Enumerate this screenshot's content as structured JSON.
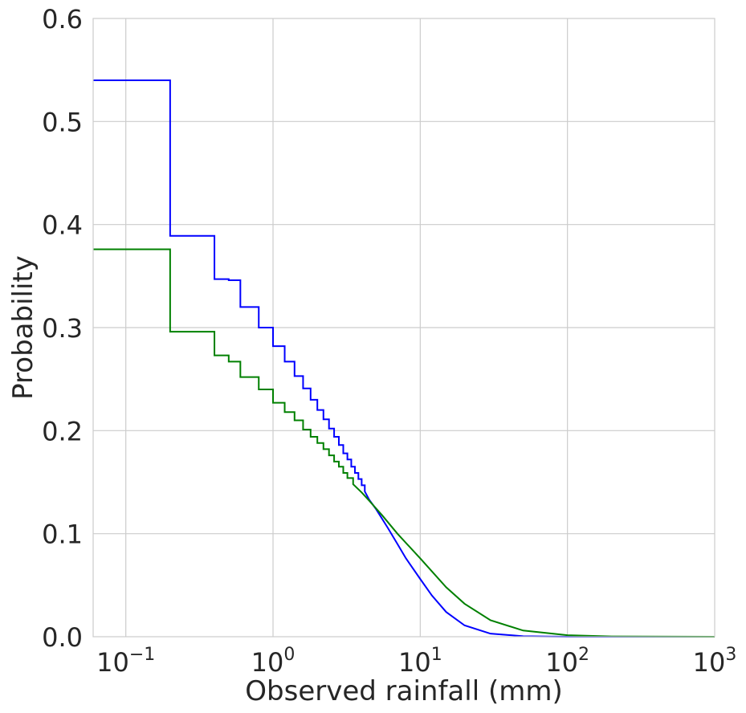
{
  "chart_data": {
    "type": "line",
    "title": "",
    "xlabel": "Observed rainfall (mm)",
    "ylabel": "Probability",
    "xscale": "log",
    "xlim": [
      0.06,
      1000
    ],
    "ylim": [
      0,
      0.6
    ],
    "grid": true,
    "x_ticks": [
      {
        "value": 0.1,
        "base": "10",
        "exp": "−1"
      },
      {
        "value": 1,
        "base": "10",
        "exp": "0"
      },
      {
        "value": 10,
        "base": "10",
        "exp": "1"
      },
      {
        "value": 100,
        "base": "10",
        "exp": "2"
      },
      {
        "value": 1000,
        "base": "10",
        "exp": "3"
      }
    ],
    "y_ticks": [
      {
        "value": 0.0,
        "label": "0.0"
      },
      {
        "value": 0.1,
        "label": "0.1"
      },
      {
        "value": 0.2,
        "label": "0.2"
      },
      {
        "value": 0.3,
        "label": "0.3"
      },
      {
        "value": 0.4,
        "label": "0.4"
      },
      {
        "value": 0.5,
        "label": "0.5"
      },
      {
        "value": 0.6,
        "label": "0.6"
      }
    ],
    "series": [
      {
        "name": "series-blue",
        "color": "#0000ff",
        "x": [
          0.06,
          0.2,
          0.2,
          0.4,
          0.4,
          0.5,
          0.5,
          0.6,
          0.6,
          0.8,
          0.8,
          1.0,
          1.0,
          1.2,
          1.2,
          1.4,
          1.4,
          1.6,
          1.6,
          1.8,
          1.8,
          2.0,
          2.0,
          2.2,
          2.2,
          2.4,
          2.4,
          2.6,
          2.6,
          2.8,
          2.8,
          3.0,
          3.0,
          3.2,
          3.2,
          3.4,
          3.4,
          3.6,
          3.6,
          3.8,
          3.8,
          4.0,
          4.0,
          4.2,
          4.2,
          4.5,
          5.0,
          6.0,
          7.0,
          8.0,
          10.0,
          12.0,
          15.0,
          20.0,
          30.0,
          50.0,
          100.0,
          1000.0
        ],
        "y": [
          0.54,
          0.54,
          0.389,
          0.389,
          0.347,
          0.347,
          0.346,
          0.346,
          0.32,
          0.32,
          0.3,
          0.3,
          0.282,
          0.282,
          0.267,
          0.267,
          0.253,
          0.253,
          0.241,
          0.241,
          0.23,
          0.23,
          0.22,
          0.22,
          0.211,
          0.211,
          0.202,
          0.202,
          0.194,
          0.194,
          0.186,
          0.186,
          0.178,
          0.178,
          0.172,
          0.172,
          0.165,
          0.165,
          0.159,
          0.159,
          0.153,
          0.153,
          0.147,
          0.147,
          0.141,
          0.133,
          0.124,
          0.106,
          0.09,
          0.076,
          0.056,
          0.04,
          0.024,
          0.011,
          0.003,
          0.0005,
          0.0,
          0.0
        ]
      },
      {
        "name": "series-green",
        "color": "#008000",
        "x": [
          0.06,
          0.2,
          0.2,
          0.4,
          0.4,
          0.5,
          0.5,
          0.6,
          0.6,
          0.8,
          0.8,
          1.0,
          1.0,
          1.2,
          1.2,
          1.4,
          1.4,
          1.6,
          1.6,
          1.8,
          1.8,
          2.0,
          2.0,
          2.2,
          2.2,
          2.4,
          2.4,
          2.6,
          2.6,
          2.8,
          2.8,
          3.0,
          3.0,
          3.2,
          3.2,
          3.5,
          3.5,
          4.0,
          4.5,
          5.5,
          7.0,
          10.0,
          15.0,
          20.0,
          30.0,
          50.0,
          100.0,
          200.0,
          1000.0
        ],
        "y": [
          0.376,
          0.376,
          0.296,
          0.296,
          0.273,
          0.273,
          0.267,
          0.267,
          0.252,
          0.252,
          0.24,
          0.24,
          0.227,
          0.227,
          0.218,
          0.218,
          0.21,
          0.21,
          0.201,
          0.201,
          0.194,
          0.194,
          0.188,
          0.188,
          0.182,
          0.182,
          0.176,
          0.176,
          0.17,
          0.17,
          0.165,
          0.165,
          0.159,
          0.159,
          0.154,
          0.154,
          0.148,
          0.14,
          0.132,
          0.118,
          0.1,
          0.076,
          0.048,
          0.032,
          0.016,
          0.006,
          0.0015,
          0.0003,
          0.0
        ]
      }
    ]
  }
}
